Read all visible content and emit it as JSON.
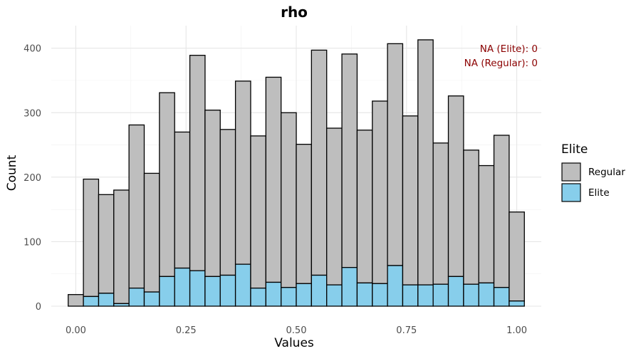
{
  "chart_data": {
    "type": "bar",
    "title": "rho",
    "xlabel": "Values",
    "ylabel": "Count",
    "xlim": [
      -0.0556,
      1.0556
    ],
    "ylim": [
      0,
      435
    ],
    "x_ticks": [
      {
        "value": 0,
        "label": "0.00"
      },
      {
        "value": 0.25,
        "label": "0.25"
      },
      {
        "value": 0.5,
        "label": "0.50"
      },
      {
        "value": 0.75,
        "label": "0.75"
      },
      {
        "value": 1,
        "label": "1.00"
      }
    ],
    "y_ticks": [
      {
        "value": 0,
        "label": "0"
      },
      {
        "value": 100,
        "label": "100"
      },
      {
        "value": 200,
        "label": "200"
      },
      {
        "value": 300,
        "label": "300"
      },
      {
        "value": 400,
        "label": "400"
      }
    ],
    "grid": true,
    "stacked": true,
    "bin_width": 0.0345,
    "bin_centers": [
      0,
      0.0345,
      0.069,
      0.1034,
      0.1379,
      0.1724,
      0.2069,
      0.2414,
      0.2759,
      0.3103,
      0.3448,
      0.3793,
      0.4138,
      0.4483,
      0.4828,
      0.5172,
      0.5517,
      0.5862,
      0.6207,
      0.6552,
      0.6897,
      0.7241,
      0.7586,
      0.7931,
      0.8276,
      0.8621,
      0.8966,
      0.931,
      0.9655,
      1.0
    ],
    "series": [
      {
        "name": "Regular",
        "color": "#bebebe",
        "values": [
          18,
          182,
          153,
          176,
          253,
          184,
          285,
          211,
          334,
          258,
          226,
          284,
          236,
          318,
          271,
          216,
          349,
          243,
          331,
          237,
          283,
          344,
          262,
          380,
          219,
          280,
          208,
          182,
          236,
          138
        ]
      },
      {
        "name": "Elite",
        "color": "#87ceeb",
        "values": [
          0,
          15,
          20,
          4,
          28,
          22,
          46,
          59,
          55,
          46,
          48,
          65,
          28,
          37,
          29,
          35,
          48,
          33,
          60,
          36,
          35,
          63,
          33,
          33,
          34,
          46,
          34,
          36,
          29,
          8
        ]
      }
    ],
    "legend": {
      "title": "Elite",
      "position": "right",
      "entries": [
        "Regular",
        "Elite"
      ]
    },
    "annotations": [
      "NA (Elite): 0",
      "NA (Regular): 0"
    ]
  }
}
